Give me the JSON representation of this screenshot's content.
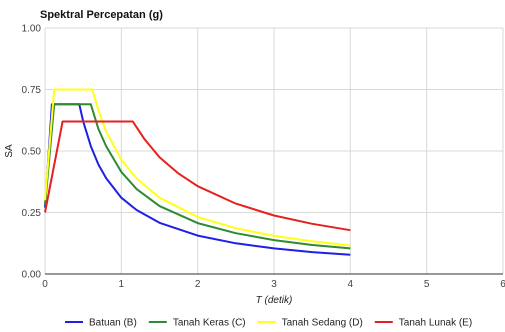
{
  "chart_data": {
    "type": "line",
    "title": "Spektral Percepatan (g)",
    "xlabel": "T (detik)",
    "ylabel": "SA",
    "xlim": [
      0,
      6
    ],
    "ylim": [
      0,
      1.0
    ],
    "x_ticks": [
      "0",
      "1",
      "2",
      "3",
      "4",
      "5",
      "6"
    ],
    "y_ticks": [
      "0.00",
      "0.25",
      "0.50",
      "0.75",
      "1.00"
    ],
    "grid": true,
    "legend_position": "bottom",
    "series": [
      {
        "name": "Batuan (B)",
        "color": "#1f1fe6",
        "x": [
          0,
          0.09,
          0.45,
          0.5,
          0.6,
          0.7,
          0.8,
          1.0,
          1.2,
          1.5,
          2.0,
          2.5,
          3.0,
          3.5,
          4.0
        ],
        "y": [
          0.27,
          0.69,
          0.69,
          0.62,
          0.52,
          0.445,
          0.39,
          0.31,
          0.26,
          0.208,
          0.156,
          0.125,
          0.104,
          0.089,
          0.078
        ]
      },
      {
        "name": "Tanah Keras (C)",
        "color": "#2e8b2e",
        "x": [
          0,
          0.12,
          0.6,
          0.7,
          0.8,
          1.0,
          1.2,
          1.5,
          2.0,
          2.5,
          3.0,
          3.5,
          4.0
        ],
        "y": [
          0.28,
          0.69,
          0.69,
          0.59,
          0.52,
          0.415,
          0.345,
          0.276,
          0.207,
          0.166,
          0.138,
          0.118,
          0.104
        ]
      },
      {
        "name": "Tanah Sedang (D)",
        "color": "#ffff1a",
        "x": [
          0,
          0.12,
          0.62,
          0.7,
          0.8,
          1.0,
          1.2,
          1.5,
          2.0,
          2.5,
          3.0,
          3.5,
          4.0
        ],
        "y": [
          0.3,
          0.75,
          0.75,
          0.665,
          0.58,
          0.465,
          0.388,
          0.31,
          0.232,
          0.186,
          0.155,
          0.133,
          0.116
        ]
      },
      {
        "name": "Tanah Lunak (E)",
        "color": "#e61f1f",
        "x": [
          0,
          0.23,
          1.15,
          1.3,
          1.5,
          1.75,
          2.0,
          2.5,
          3.0,
          3.5,
          4.0
        ],
        "y": [
          0.25,
          0.62,
          0.62,
          0.55,
          0.475,
          0.408,
          0.357,
          0.286,
          0.238,
          0.204,
          0.178
        ]
      }
    ]
  }
}
